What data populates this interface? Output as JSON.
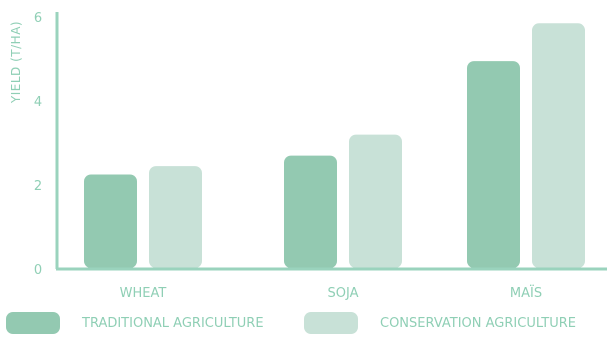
{
  "chart_data": {
    "type": "bar",
    "ylabel": "YIELD (T/HA)",
    "ylim": [
      0,
      6
    ],
    "yticks": [
      0,
      2,
      4,
      6
    ],
    "categories": [
      "WHEAT",
      "SOJA",
      "MAÏS"
    ],
    "series": [
      {
        "name": "TRADITIONAL AGRICULTURE",
        "values": [
          2.25,
          2.7,
          4.95
        ],
        "color": "#93c9b1"
      },
      {
        "name": "CONSERVATION AGRICULTURE",
        "values": [
          2.45,
          3.2,
          5.85
        ],
        "color": "#c8e1d7"
      }
    ],
    "grid": false,
    "legend_position": "bottom"
  },
  "colors": {
    "axis": "#9ad3bd",
    "text": "#8fcfb5"
  }
}
